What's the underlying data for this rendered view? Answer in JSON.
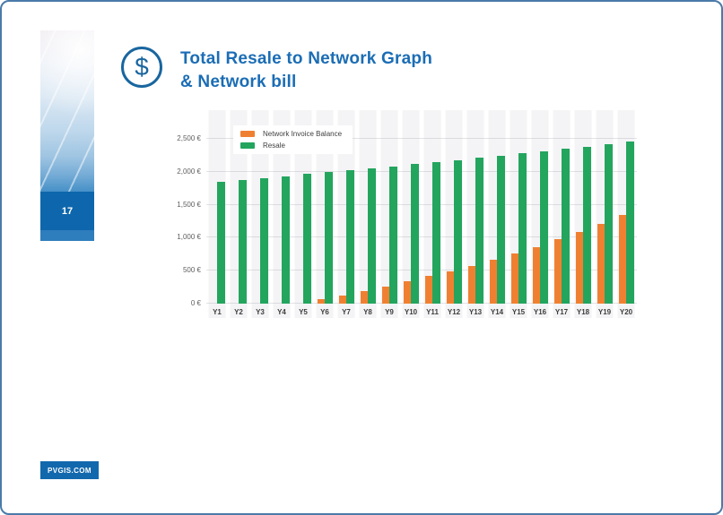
{
  "slide": {
    "page_number": "17",
    "footer_brand": "PVGIS.COM",
    "title_line1": "Total Resale to Network Graph",
    "title_line2": "& Network bill",
    "icon_glyph": "$"
  },
  "colors": {
    "title_blue": "#1b6db5",
    "icon_blue": "#19669f",
    "page_box_blue": "#0e67ac",
    "footer_blue": "#1268ad",
    "border_blue": "#4a7aa8",
    "bar_orange": "#f08031",
    "bar_green": "#23a55e",
    "gridline_gray": "#e3e3e7"
  },
  "chart_data": {
    "type": "bar",
    "title": "",
    "xlabel": "",
    "ylabel": "",
    "grid": true,
    "legend_position": "top-left",
    "ylim": [
      0,
      2950
    ],
    "categories": [
      "Y1",
      "Y2",
      "Y3",
      "Y4",
      "Y5",
      "Y6",
      "Y7",
      "Y8",
      "Y9",
      "Y10",
      "Y11",
      "Y12",
      "Y13",
      "Y14",
      "Y15",
      "Y16",
      "Y17",
      "Y18",
      "Y19",
      "Y20"
    ],
    "series": [
      {
        "name": "Network Invoice Balance",
        "color": "#f08031",
        "values": [
          0,
          0,
          0,
          0,
          0,
          65,
          125,
          195,
          265,
          340,
          415,
          490,
          575,
          660,
          755,
          860,
          975,
          1090,
          1215,
          1340
        ]
      },
      {
        "name": "Resale",
        "color": "#23a55e",
        "values": [
          1850,
          1878,
          1906,
          1935,
          1964,
          1993,
          2023,
          2053,
          2084,
          2115,
          2147,
          2179,
          2212,
          2245,
          2279,
          2313,
          2348,
          2383,
          2419,
          2455
        ]
      }
    ],
    "y_ticks": [
      {
        "value": 0,
        "label": "0 €"
      },
      {
        "value": 500,
        "label": "500 €"
      },
      {
        "value": 1000,
        "label": "1,000 €"
      },
      {
        "value": 1500,
        "label": "1,500 €"
      },
      {
        "value": 2000,
        "label": "2,000 €"
      },
      {
        "value": 2500,
        "label": "2,500 €"
      }
    ]
  }
}
